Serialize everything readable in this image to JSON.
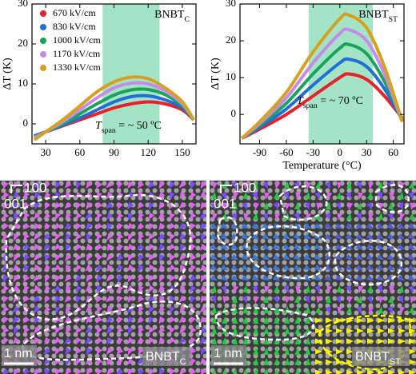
{
  "chart_data": [
    {
      "type": "line",
      "ylabel": "ΔT (K)",
      "label": {
        "text": "BNBT",
        "subscript": "C"
      },
      "span_label": {
        "symbol": "T",
        "subscript": "span",
        "text": " = ~ 50 ºC"
      },
      "span": [
        80,
        130
      ],
      "span_color": "#a3e4c6",
      "x": [
        20,
        30,
        45,
        60,
        75,
        90,
        105,
        120,
        135,
        150,
        160
      ],
      "series": [
        {
          "name": "670 kV/cm",
          "color": "#e8202a",
          "values": [
            -3,
            -2,
            -0.5,
            1,
            2.5,
            4,
            5,
            5.5,
            5,
            3.5,
            1
          ]
        },
        {
          "name": "830 kV/cm",
          "color": "#1f6fd6",
          "values": [
            -3,
            -2,
            -0.3,
            1.5,
            3.5,
            5.5,
            6.8,
            7,
            6,
            4,
            1
          ]
        },
        {
          "name": "1000 kV/cm",
          "color": "#1aa35a",
          "values": [
            -3.3,
            -2,
            0,
            2.5,
            5,
            7.2,
            8.5,
            8.6,
            7.3,
            4.5,
            1
          ]
        },
        {
          "name": "1170 kV/cm",
          "color": "#c58be8",
          "values": [
            -3.5,
            -2,
            0.5,
            3.5,
            6.5,
            9,
            10.2,
            10,
            8.2,
            5,
            1
          ]
        },
        {
          "name": "1330 kV/cm",
          "color": "#d8a020",
          "values": [
            -4,
            -2,
            1,
            4.5,
            8,
            10.5,
            11.7,
            11.3,
            9,
            5.5,
            1
          ]
        }
      ],
      "xlim": [
        18,
        162
      ],
      "xticks": [
        30,
        60,
        90,
        120,
        150
      ],
      "ylim": [
        -5,
        30
      ],
      "yticks": [
        0,
        10,
        20,
        30
      ],
      "legend": "upper left"
    },
    {
      "type": "line",
      "xlabel": "Temperature (°C)",
      "ylabel": "ΔT (K)",
      "label": {
        "text": "BNBT",
        "subscript": "ST"
      },
      "span_label": {
        "symbol": "T",
        "subscript": "span",
        "text": " = ~ 70 ºC"
      },
      "span": [
        -35,
        37
      ],
      "span_color": "#a3e4c6",
      "x": [
        -110,
        -90,
        -60,
        -30,
        0,
        10,
        30,
        50,
        70
      ],
      "series": [
        {
          "color": "#e8202a",
          "values": [
            -6.5,
            -4,
            0,
            5,
            10,
            11,
            9.5,
            5,
            -1
          ]
        },
        {
          "color": "#1f6fd6",
          "values": [
            -6.5,
            -3.5,
            1.5,
            8,
            14,
            15,
            13,
            7,
            -1.5
          ]
        },
        {
          "color": "#1aa35a",
          "values": [
            -6.5,
            -3,
            3,
            11,
            18,
            19,
            16.5,
            9,
            -1.5
          ]
        },
        {
          "color": "#c58be8",
          "values": [
            -6.5,
            -2.5,
            4.5,
            14,
            22,
            23,
            20,
            11,
            -2
          ]
        },
        {
          "color": "#d8a020",
          "values": [
            -6.5,
            -2,
            6,
            17,
            26,
            27,
            23.5,
            13,
            -2
          ]
        }
      ],
      "xlim": [
        -112,
        72
      ],
      "xticks": [
        -90,
        -60,
        -30,
        0,
        30,
        60
      ],
      "ylim": [
        -8,
        30
      ],
      "yticks": [
        0,
        10,
        20,
        30
      ]
    }
  ],
  "images": [
    {
      "directions": [
        "100",
        "001"
      ],
      "scale_bar": "1 nm",
      "label": {
        "text": "BNBT",
        "subscript": "C"
      }
    },
    {
      "directions": [
        "100",
        "001"
      ],
      "scale_bar": "1 nm",
      "label": {
        "text": "BNBT",
        "subscript": "ST"
      }
    }
  ]
}
